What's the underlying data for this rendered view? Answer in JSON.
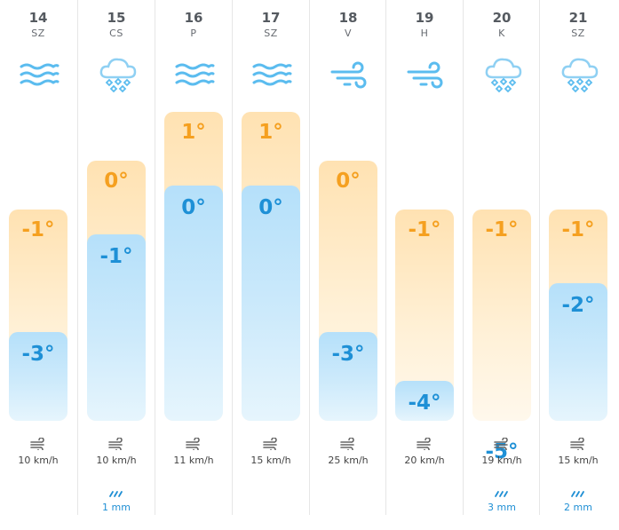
{
  "days": [
    {
      "num": "14",
      "abbr": "SZ",
      "icon": "fog-icon",
      "max": "-1°",
      "min": "-3°",
      "max_value": -1,
      "min_value": -3,
      "wind": "10 km/h",
      "precip": ""
    },
    {
      "num": "15",
      "abbr": "CS",
      "icon": "snow-icon",
      "max": "0°",
      "min": "-1°",
      "max_value": 0,
      "min_value": -1,
      "wind": "10 km/h",
      "precip": "1 mm"
    },
    {
      "num": "16",
      "abbr": "P",
      "icon": "fog-icon",
      "max": "1°",
      "min": "0°",
      "max_value": 1,
      "min_value": 0,
      "wind": "11 km/h",
      "precip": ""
    },
    {
      "num": "17",
      "abbr": "SZ",
      "icon": "fog-icon",
      "max": "1°",
      "min": "0°",
      "max_value": 1,
      "min_value": 0,
      "wind": "15 km/h",
      "precip": ""
    },
    {
      "num": "18",
      "abbr": "V",
      "icon": "wind-icon",
      "max": "0°",
      "min": "-3°",
      "max_value": 0,
      "min_value": -3,
      "wind": "25 km/h",
      "precip": ""
    },
    {
      "num": "19",
      "abbr": "H",
      "icon": "wind-icon",
      "max": "-1°",
      "min": "-4°",
      "max_value": -1,
      "min_value": -4,
      "wind": "20 km/h",
      "precip": ""
    },
    {
      "num": "20",
      "abbr": "K",
      "icon": "snow-icon",
      "max": "-1°",
      "min": "-5°",
      "max_value": -1,
      "min_value": -5,
      "wind": "19 km/h",
      "precip": "3 mm"
    },
    {
      "num": "21",
      "abbr": "SZ",
      "icon": "snow-icon",
      "max": "-1°",
      "min": "-2°",
      "max_value": -1,
      "min_value": -2,
      "wind": "15 km/h",
      "precip": "2 mm"
    }
  ],
  "colors": {
    "max_temp": "#f5a020",
    "min_temp": "#1e90d6",
    "icon_blue": "#5bbcef",
    "precip": "#1f8fd4"
  }
}
